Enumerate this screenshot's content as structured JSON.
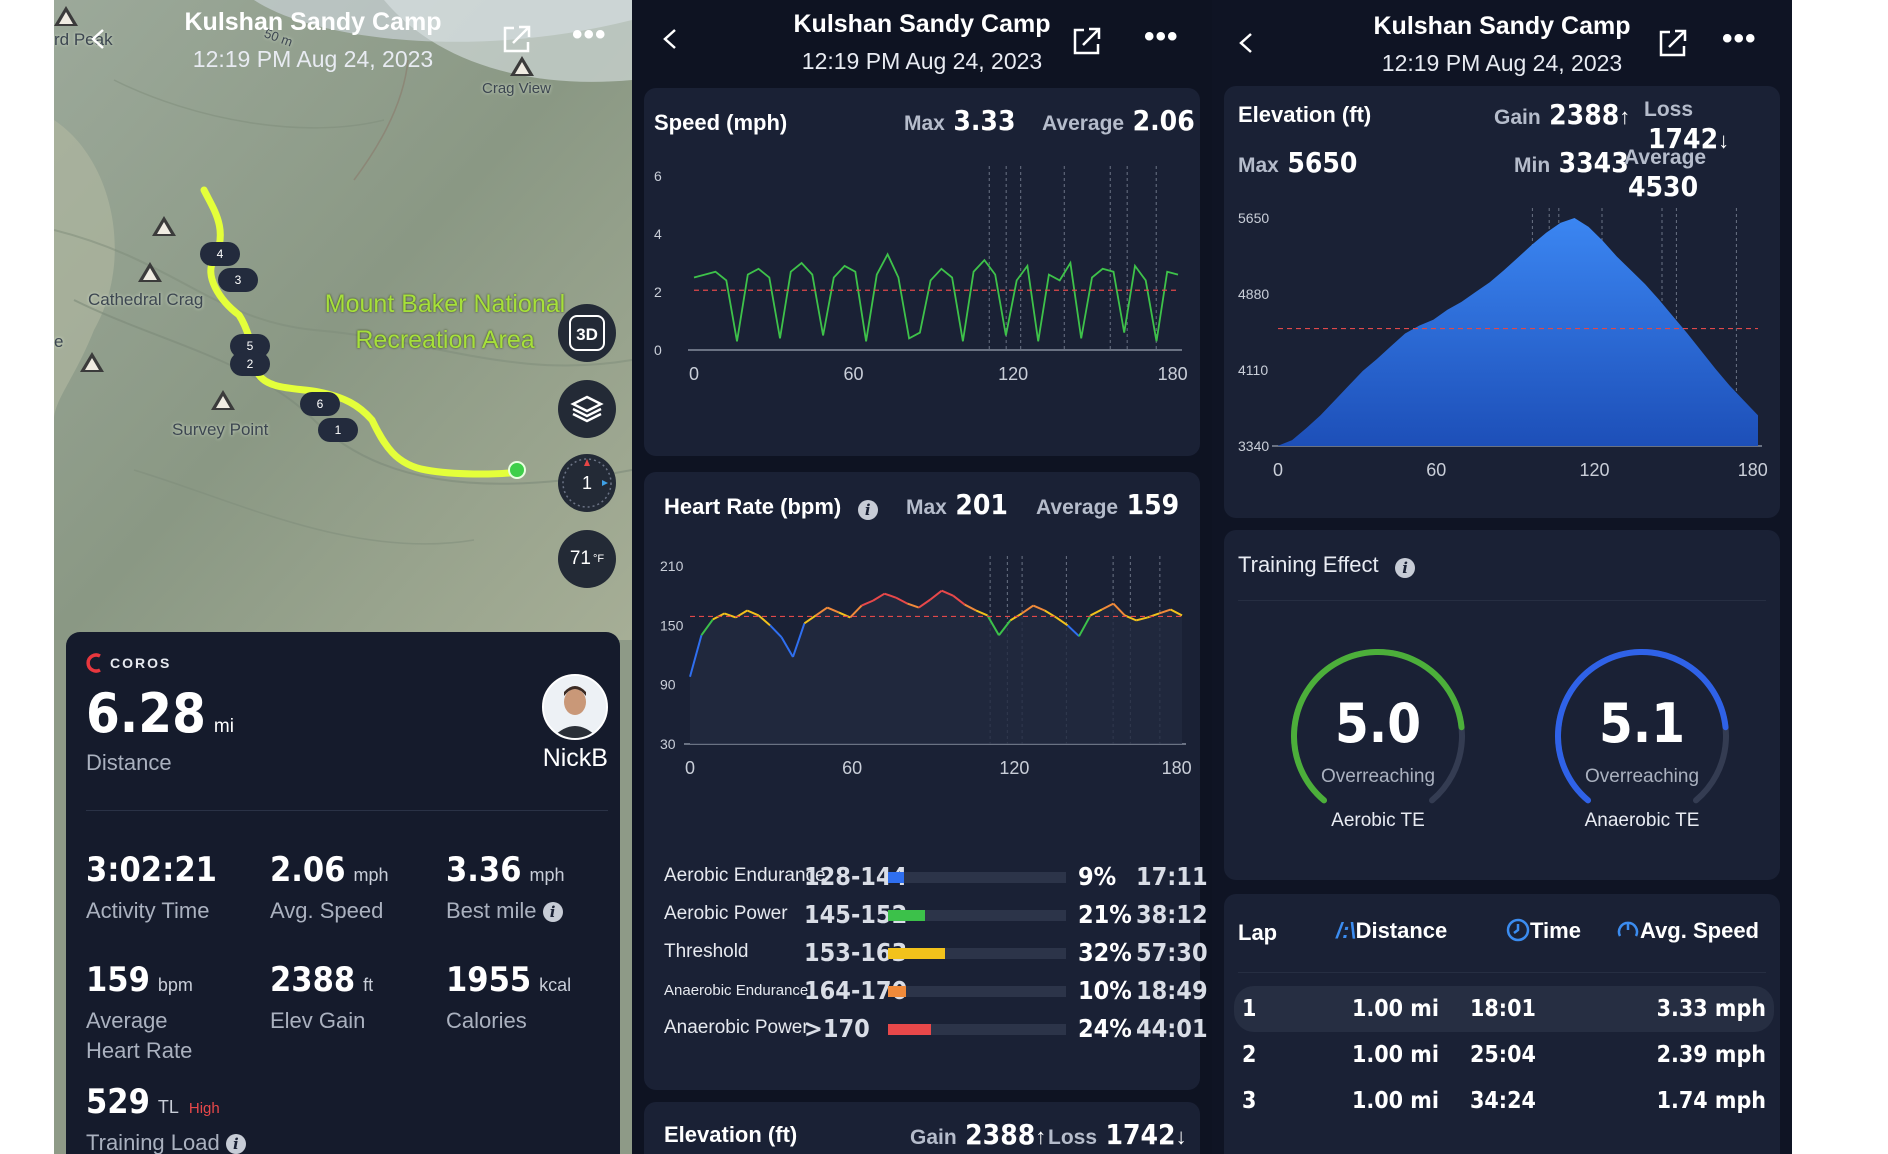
{
  "header": {
    "title": "Kulshan Sandy Camp",
    "datetime": "12:19 PM Aug 24, 2023"
  },
  "map": {
    "labels": {
      "rd_peak": "rd Peak",
      "crag_view": "Crag View",
      "cathedral_crag": "Cathedral Crag",
      "survey_point": "Survey Point",
      "park_line1": "Mount Baker National",
      "park_line2": "Recreation Area",
      "edge_e": "e",
      "elev_tag": "50 m"
    },
    "lap_pins": [
      "4",
      "3",
      "5",
      "2",
      "6",
      "1"
    ],
    "btn_3d": "3D",
    "compass_value": "1",
    "temperature": "71",
    "temperature_unit": "°F"
  },
  "summary": {
    "brand": "COROS",
    "distance_value": "6.28",
    "distance_unit": "mi",
    "distance_label": "Distance",
    "username": "NickB",
    "stats": [
      {
        "value": "3:02:21",
        "unit": "",
        "label": "Activity Time"
      },
      {
        "value": "2.06",
        "unit": "mph",
        "label": "Avg. Speed"
      },
      {
        "value": "3.36",
        "unit": "mph",
        "label": "Best mile"
      },
      {
        "value": "159",
        "unit": "bpm",
        "label": "Average Heart Rate"
      },
      {
        "value": "2388",
        "unit": "ft",
        "label": "Elev Gain"
      },
      {
        "value": "1955",
        "unit": "kcal",
        "label": "Calories"
      }
    ],
    "training_load_value": "529",
    "training_load_unit": "TL",
    "training_load_level": "High",
    "training_load_label": "Training Load"
  },
  "speed": {
    "title": "Speed (mph)",
    "max_label": "Max",
    "max_value": "3.33",
    "avg_label": "Average",
    "avg_value": "2.06"
  },
  "heart_rate": {
    "title": "Heart Rate (bpm)",
    "max_label": "Max",
    "max_value": "201",
    "avg_label": "Average",
    "avg_value": "159",
    "zones": [
      {
        "name": "Aerobic Endurance",
        "range": "128-144",
        "pct": "9%",
        "time": "17:11",
        "color": "#2f6ff0",
        "fraction": 0.09
      },
      {
        "name": "Aerobic Power",
        "range": "145-152",
        "pct": "21%",
        "time": "38:12",
        "color": "#3cc14a",
        "fraction": 0.21
      },
      {
        "name": "Threshold",
        "range": "153-163",
        "pct": "32%",
        "time": "57:30",
        "color": "#f2c21b",
        "fraction": 0.32
      },
      {
        "name": "Anaerobic Endurance",
        "range": "164-170",
        "pct": "10%",
        "time": "18:49",
        "color": "#f08a3a",
        "fraction": 0.1
      },
      {
        "name": "Anaerobic Power",
        "range": ">170",
        "pct": "24%",
        "time": "44:01",
        "color": "#e8484a",
        "fraction": 0.24
      }
    ]
  },
  "elevation_bottom": {
    "title": "Elevation (ft)",
    "gain_label": "Gain",
    "gain_value": "2388",
    "loss_label": "Loss",
    "loss_value": "1742"
  },
  "elevation": {
    "title": "Elevation (ft)",
    "gain_label": "Gain",
    "gain_value": "2388",
    "loss_label": "Loss",
    "loss_value": "1742",
    "max_label": "Max",
    "max_value": "5650",
    "min_label": "Min",
    "min_value": "3343",
    "avg_label": "Average",
    "avg_value": "4530"
  },
  "training_effect": {
    "title": "Training Effect",
    "aerobic": {
      "value": "5.0",
      "status": "Overreaching",
      "label": "Aerobic TE",
      "color": "#4caf3a",
      "level": 5.0
    },
    "anaerobic": {
      "value": "5.1",
      "status": "Overreaching",
      "label": "Anaerobic TE",
      "color": "#2f62e8",
      "level": 5.1
    }
  },
  "laps": {
    "headers": {
      "lap": "Lap",
      "distance": "Distance",
      "time": "Time",
      "avg_speed": "Avg. Speed"
    },
    "rows": [
      {
        "lap": "1",
        "distance": "1.00 mi",
        "time": "18:01",
        "speed": "3.33 mph"
      },
      {
        "lap": "2",
        "distance": "1.00 mi",
        "time": "25:04",
        "speed": "2.39 mph"
      },
      {
        "lap": "3",
        "distance": "1.00 mi",
        "time": "34:24",
        "speed": "1.74 mph"
      }
    ]
  },
  "chart_data": [
    {
      "type": "line",
      "title": "Speed (mph)",
      "x_ticks": [
        "0",
        "60",
        "120",
        "180"
      ],
      "y_ticks": [
        "0",
        "2",
        "4",
        "6"
      ],
      "xlim": [
        0,
        182
      ],
      "ylim": [
        0,
        6
      ],
      "average_line": 2.06,
      "series": [
        {
          "color": "#3ec24a",
          "values": [
            2.5,
            2.6,
            2.7,
            2.4,
            0.3,
            2.6,
            2.8,
            2.5,
            0.4,
            2.7,
            3.0,
            2.6,
            0.5,
            2.5,
            2.9,
            2.7,
            0.3,
            2.6,
            3.3,
            2.5,
            0.4,
            0.6,
            2.4,
            2.8,
            2.5,
            0.3,
            2.7,
            3.1,
            2.6,
            0.5,
            2.4,
            2.9,
            0.3,
            2.6,
            2.4,
            3.0,
            0.4,
            2.5,
            2.8,
            2.7,
            0.6,
            2.9,
            2.4,
            0.3,
            2.7,
            2.6
          ]
        }
      ]
    },
    {
      "type": "line",
      "title": "Heart Rate (bpm)",
      "x_ticks": [
        "0",
        "60",
        "120",
        "180"
      ],
      "y_ticks": [
        "30",
        "90",
        "150",
        "210"
      ],
      "xlim": [
        0,
        182
      ],
      "ylim": [
        30,
        210
      ],
      "average_line": 159,
      "series": [
        {
          "values": [
            98,
            140,
            156,
            162,
            158,
            165,
            160,
            150,
            138,
            118,
            152,
            160,
            168,
            163,
            158,
            170,
            175,
            182,
            178,
            172,
            168,
            176,
            185,
            180,
            171,
            165,
            160,
            140,
            155,
            162,
            170,
            165,
            158,
            150,
            139,
            160,
            166,
            172,
            160,
            155,
            158,
            162,
            166,
            160
          ]
        }
      ]
    },
    {
      "type": "area",
      "title": "Elevation (ft)",
      "x_ticks": [
        "0",
        "60",
        "120",
        "180"
      ],
      "y_ticks": [
        "3340",
        "4110",
        "4880",
        "5650"
      ],
      "xlim": [
        0,
        182
      ],
      "ylim": [
        3340,
        5650
      ],
      "average_line": 4530,
      "series": [
        {
          "color": "#2f73e0",
          "values": [
            3343,
            3400,
            3520,
            3650,
            3800,
            3950,
            4100,
            4220,
            4350,
            4480,
            4560,
            4620,
            4720,
            4800,
            4900,
            5000,
            5120,
            5250,
            5380,
            5500,
            5600,
            5650,
            5560,
            5420,
            5260,
            5120,
            4980,
            4820,
            4650,
            4480,
            4300,
            4120,
            3950,
            3800,
            3650
          ]
        }
      ]
    }
  ]
}
